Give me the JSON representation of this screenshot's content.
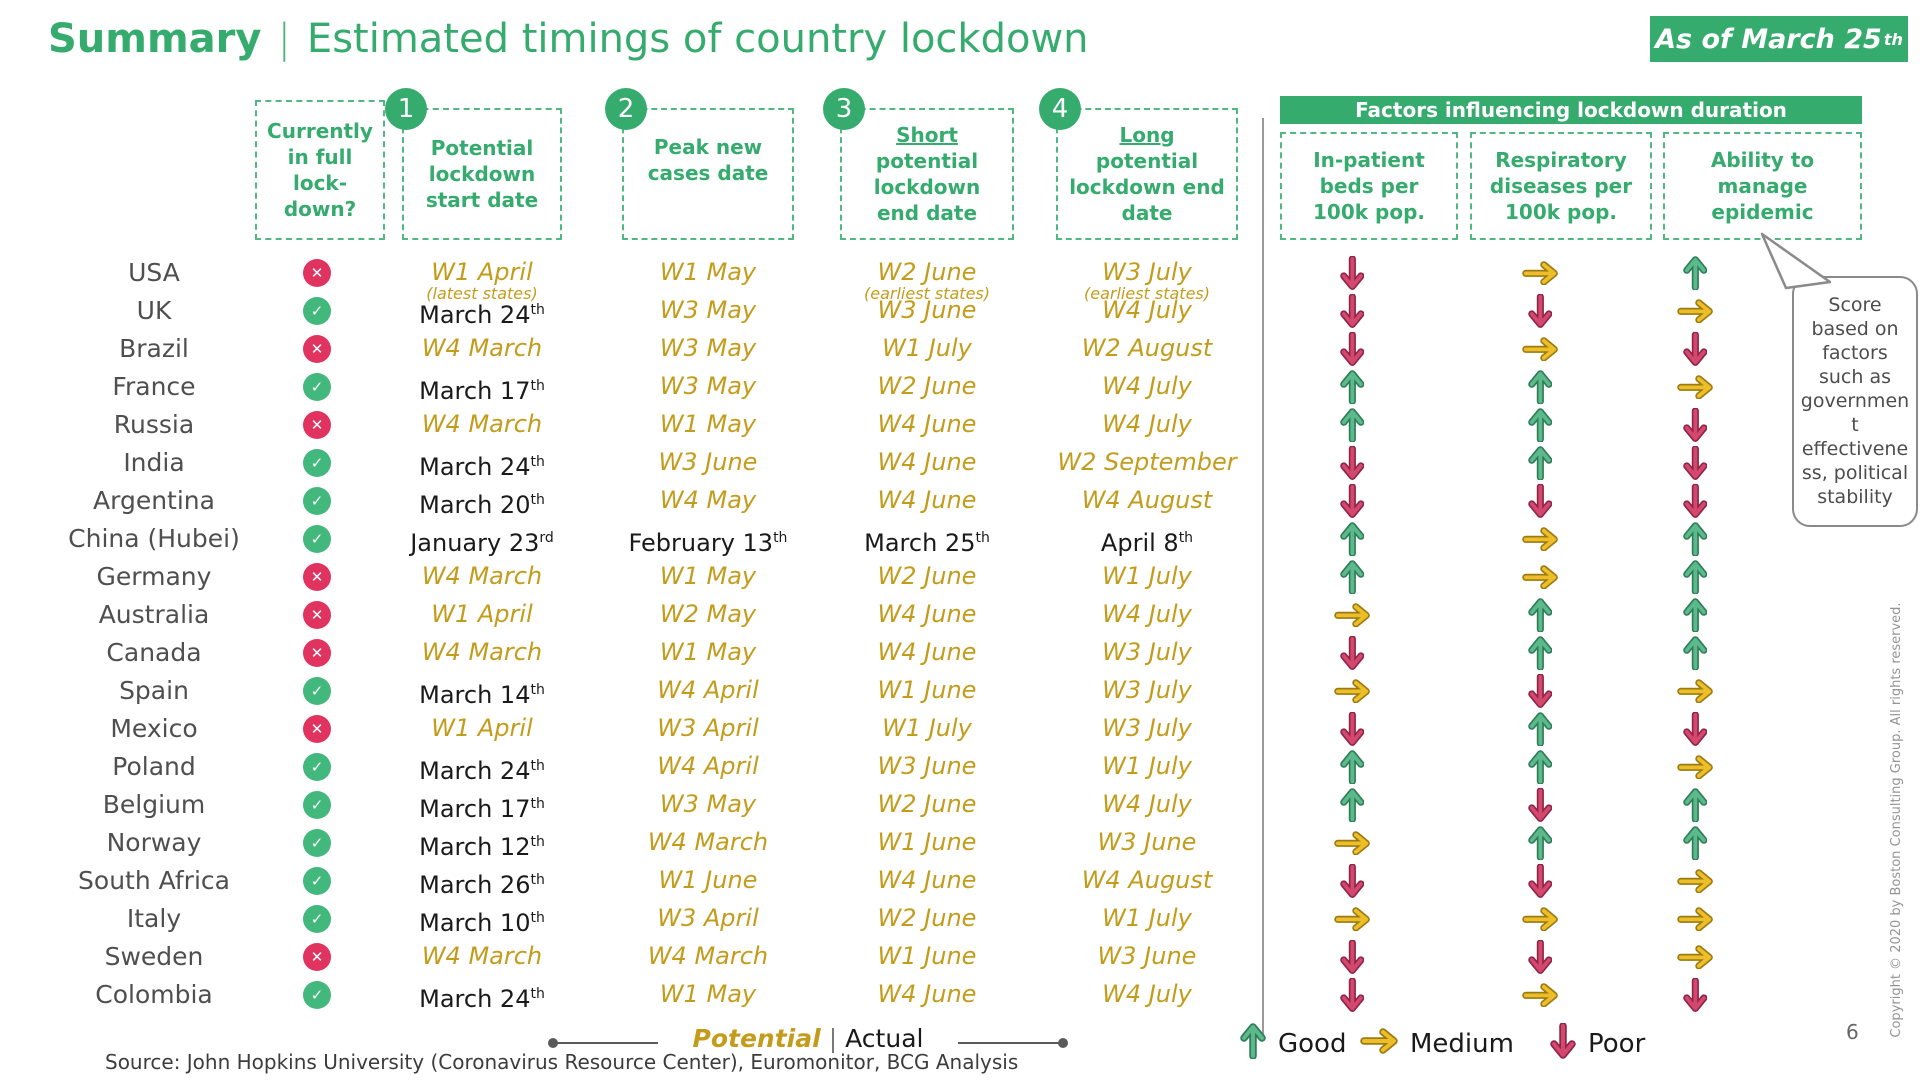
{
  "title": {
    "heading": "Summary",
    "sep": "|",
    "subtitle": "Estimated timings of country lockdown"
  },
  "badge": {
    "text": "As of March 25",
    "sup": "th"
  },
  "columns": {
    "lockdown": "Currently in full lock-down?",
    "start": {
      "num": "1",
      "label": "Potential lockdown start date"
    },
    "peak": {
      "num": "2",
      "label": "Peak new cases date"
    },
    "short": {
      "num": "3",
      "em": "Short",
      "rest": "potential lockdown end date"
    },
    "long": {
      "num": "4",
      "em": "Long",
      "rest": "potential lockdown end date"
    }
  },
  "factors": {
    "banner": "Factors influencing lockdown duration",
    "items": [
      "In-patient beds per 100k pop.",
      "Respiratory diseases per 100k pop.",
      "Ability to manage epidemic"
    ]
  },
  "callout": "Score based on factors such as government effectiveness, political stability",
  "status_icons": {
    "yes": "✓",
    "no": "✕"
  },
  "rows": [
    {
      "country": "USA",
      "in_lockdown": false,
      "start": {
        "t": "W1 April",
        "note": "(latest states)"
      },
      "peak": {
        "t": "W1 May"
      },
      "short": {
        "t": "W2 June",
        "note": "(earliest states)"
      },
      "long": {
        "t": "W3 July",
        "note": "(earliest states)"
      },
      "factors": [
        "poor",
        "medium",
        "good"
      ]
    },
    {
      "country": "UK",
      "in_lockdown": true,
      "start": {
        "t": "March 24",
        "sup": "th",
        "actual": true
      },
      "peak": {
        "t": "W3 May"
      },
      "short": {
        "t": "W3 June"
      },
      "long": {
        "t": "W4 July"
      },
      "factors": [
        "poor",
        "poor",
        "medium"
      ]
    },
    {
      "country": "Brazil",
      "in_lockdown": false,
      "start": {
        "t": "W4 March"
      },
      "peak": {
        "t": "W3 May"
      },
      "short": {
        "t": "W1 July"
      },
      "long": {
        "t": "W2 August"
      },
      "factors": [
        "poor",
        "medium",
        "poor"
      ]
    },
    {
      "country": "France",
      "in_lockdown": true,
      "start": {
        "t": "March 17",
        "sup": "th",
        "actual": true
      },
      "peak": {
        "t": "W3 May"
      },
      "short": {
        "t": "W2 June"
      },
      "long": {
        "t": "W4 July"
      },
      "factors": [
        "good",
        "good",
        "medium"
      ]
    },
    {
      "country": "Russia",
      "in_lockdown": false,
      "start": {
        "t": "W4 March"
      },
      "peak": {
        "t": "W1 May"
      },
      "short": {
        "t": "W4 June"
      },
      "long": {
        "t": "W4 July"
      },
      "factors": [
        "good",
        "good",
        "poor"
      ]
    },
    {
      "country": "India",
      "in_lockdown": true,
      "start": {
        "t": "March 24",
        "sup": "th",
        "actual": true
      },
      "peak": {
        "t": "W3 June"
      },
      "short": {
        "t": "W4 June"
      },
      "long": {
        "t": "W2 September"
      },
      "factors": [
        "poor",
        "good",
        "poor"
      ]
    },
    {
      "country": "Argentina",
      "in_lockdown": true,
      "start": {
        "t": "March 20",
        "sup": "th",
        "actual": true
      },
      "peak": {
        "t": "W4 May"
      },
      "short": {
        "t": "W4 June"
      },
      "long": {
        "t": "W4 August"
      },
      "factors": [
        "poor",
        "poor",
        "poor"
      ]
    },
    {
      "country": "China (Hubei)",
      "in_lockdown": true,
      "start": {
        "t": "January 23",
        "sup": "rd",
        "actual": true
      },
      "peak": {
        "t": "February 13",
        "sup": "th",
        "actual": true
      },
      "short": {
        "t": "March 25",
        "sup": "th",
        "actual": true
      },
      "long": {
        "t": "April 8",
        "sup": "th",
        "actual": true
      },
      "factors": [
        "good",
        "medium",
        "good"
      ]
    },
    {
      "country": "Germany",
      "in_lockdown": false,
      "start": {
        "t": "W4 March"
      },
      "peak": {
        "t": "W1 May"
      },
      "short": {
        "t": "W2 June"
      },
      "long": {
        "t": "W1 July"
      },
      "factors": [
        "good",
        "medium",
        "good"
      ]
    },
    {
      "country": "Australia",
      "in_lockdown": false,
      "start": {
        "t": "W1 April"
      },
      "peak": {
        "t": "W2 May"
      },
      "short": {
        "t": "W4 June"
      },
      "long": {
        "t": "W4 July"
      },
      "factors": [
        "medium",
        "good",
        "good"
      ]
    },
    {
      "country": "Canada",
      "in_lockdown": false,
      "start": {
        "t": "W4 March"
      },
      "peak": {
        "t": "W1 May"
      },
      "short": {
        "t": "W4 June"
      },
      "long": {
        "t": "W3 July"
      },
      "factors": [
        "poor",
        "good",
        "good"
      ]
    },
    {
      "country": "Spain",
      "in_lockdown": true,
      "start": {
        "t": "March 14",
        "sup": "th",
        "actual": true
      },
      "peak": {
        "t": "W4 April"
      },
      "short": {
        "t": "W1 June"
      },
      "long": {
        "t": "W3 July"
      },
      "factors": [
        "medium",
        "poor",
        "medium"
      ]
    },
    {
      "country": "Mexico",
      "in_lockdown": false,
      "start": {
        "t": "W1 April"
      },
      "peak": {
        "t": "W3 April"
      },
      "short": {
        "t": "W1 July"
      },
      "long": {
        "t": "W3 July"
      },
      "factors": [
        "poor",
        "good",
        "poor"
      ]
    },
    {
      "country": "Poland",
      "in_lockdown": true,
      "start": {
        "t": "March 24",
        "sup": "th",
        "actual": true
      },
      "peak": {
        "t": "W4 April"
      },
      "short": {
        "t": "W3 June"
      },
      "long": {
        "t": "W1 July"
      },
      "factors": [
        "good",
        "good",
        "medium"
      ]
    },
    {
      "country": "Belgium",
      "in_lockdown": true,
      "start": {
        "t": "March 17",
        "sup": "th",
        "actual": true
      },
      "peak": {
        "t": "W3 May"
      },
      "short": {
        "t": "W2 June"
      },
      "long": {
        "t": "W4 July"
      },
      "factors": [
        "good",
        "poor",
        "good"
      ]
    },
    {
      "country": "Norway",
      "in_lockdown": true,
      "start": {
        "t": "March 12",
        "sup": "th",
        "actual": true
      },
      "peak": {
        "t": "W4 March"
      },
      "short": {
        "t": "W1 June"
      },
      "long": {
        "t": "W3 June"
      },
      "factors": [
        "medium",
        "good",
        "good"
      ]
    },
    {
      "country": "South Africa",
      "in_lockdown": true,
      "start": {
        "t": "March 26",
        "sup": "th",
        "actual": true
      },
      "peak": {
        "t": "W1 June"
      },
      "short": {
        "t": "W4 June"
      },
      "long": {
        "t": "W4 August"
      },
      "factors": [
        "poor",
        "poor",
        "medium"
      ]
    },
    {
      "country": "Italy",
      "in_lockdown": true,
      "start": {
        "t": "March 10",
        "sup": "th",
        "actual": true
      },
      "peak": {
        "t": "W3 April"
      },
      "short": {
        "t": "W2 June"
      },
      "long": {
        "t": "W1 July"
      },
      "factors": [
        "medium",
        "medium",
        "medium"
      ]
    },
    {
      "country": "Sweden",
      "in_lockdown": false,
      "start": {
        "t": "W4 March"
      },
      "peak": {
        "t": "W4 March"
      },
      "short": {
        "t": "W1 June"
      },
      "long": {
        "t": "W3 June"
      },
      "factors": [
        "poor",
        "poor",
        "medium"
      ]
    },
    {
      "country": "Colombia",
      "in_lockdown": true,
      "start": {
        "t": "March 24",
        "sup": "th",
        "actual": true
      },
      "peak": {
        "t": "W1 May"
      },
      "short": {
        "t": "W4 June"
      },
      "long": {
        "t": "W4 July"
      },
      "factors": [
        "poor",
        "medium",
        "poor"
      ]
    }
  ],
  "legend": {
    "potential": "Potential",
    "sep": "|",
    "actual": "Actual",
    "good": "Good",
    "medium": "Medium",
    "poor": "Poor"
  },
  "source": "Source: John Hopkins University (Coronavirus Resource Center), Euromonitor, BCG Analysis",
  "page_number": "6",
  "copyright": "Copyright © 2020 by Boston Consulting Group. All rights reserved.",
  "colors": {
    "accent_green": "#35ab6d",
    "date_gold": "#c49c1c",
    "status_red": "#e0335f",
    "status_green": "#43b87c",
    "arrow_good": "#5cb98c",
    "arrow_good_outline": "#2f7d57",
    "arrow_medium": "#edbe2a",
    "arrow_medium_outline": "#9a7b10",
    "arrow_poor": "#d44870",
    "arrow_poor_outline": "#8e2547"
  }
}
